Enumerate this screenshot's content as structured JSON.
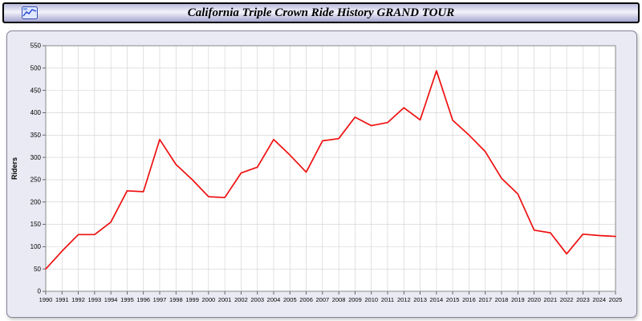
{
  "title_bar": {
    "title": "California Triple Crown Ride History GRAND TOUR",
    "icon": "mini-chart-logo-icon"
  },
  "chart_data": {
    "type": "line",
    "title": "California Triple Crown Ride History GRAND TOUR",
    "xlabel": "",
    "ylabel": "Riders",
    "ylim": [
      0,
      550
    ],
    "y_ticks": [
      0,
      50,
      100,
      150,
      200,
      250,
      300,
      350,
      400,
      450,
      500,
      550
    ],
    "grid": true,
    "legend": "none",
    "line_color": "#ee1010",
    "plot_bg": "#ffffff",
    "panel_bg": "#eaeaf4",
    "grid_color": "#cfcfcf",
    "x": [
      1990,
      1991,
      1992,
      1993,
      1994,
      1995,
      1996,
      1997,
      1998,
      1999,
      2000,
      2001,
      2002,
      2003,
      2004,
      2005,
      2006,
      2007,
      2008,
      2009,
      2010,
      2011,
      2012,
      2013,
      2014,
      2015,
      2016,
      2017,
      2018,
      2019,
      2020,
      2021,
      2022,
      2023,
      2024,
      2025
    ],
    "series": [
      {
        "name": "Riders",
        "values": [
          50,
          90,
          127,
          127,
          155,
          225,
          223,
          340,
          284,
          250,
          212,
          210,
          265,
          278,
          340,
          305,
          267,
          337,
          342,
          390,
          371,
          378,
          411,
          384,
          494,
          383,
          350,
          313,
          253,
          218,
          137,
          131,
          84,
          128,
          125,
          123
        ]
      }
    ]
  }
}
